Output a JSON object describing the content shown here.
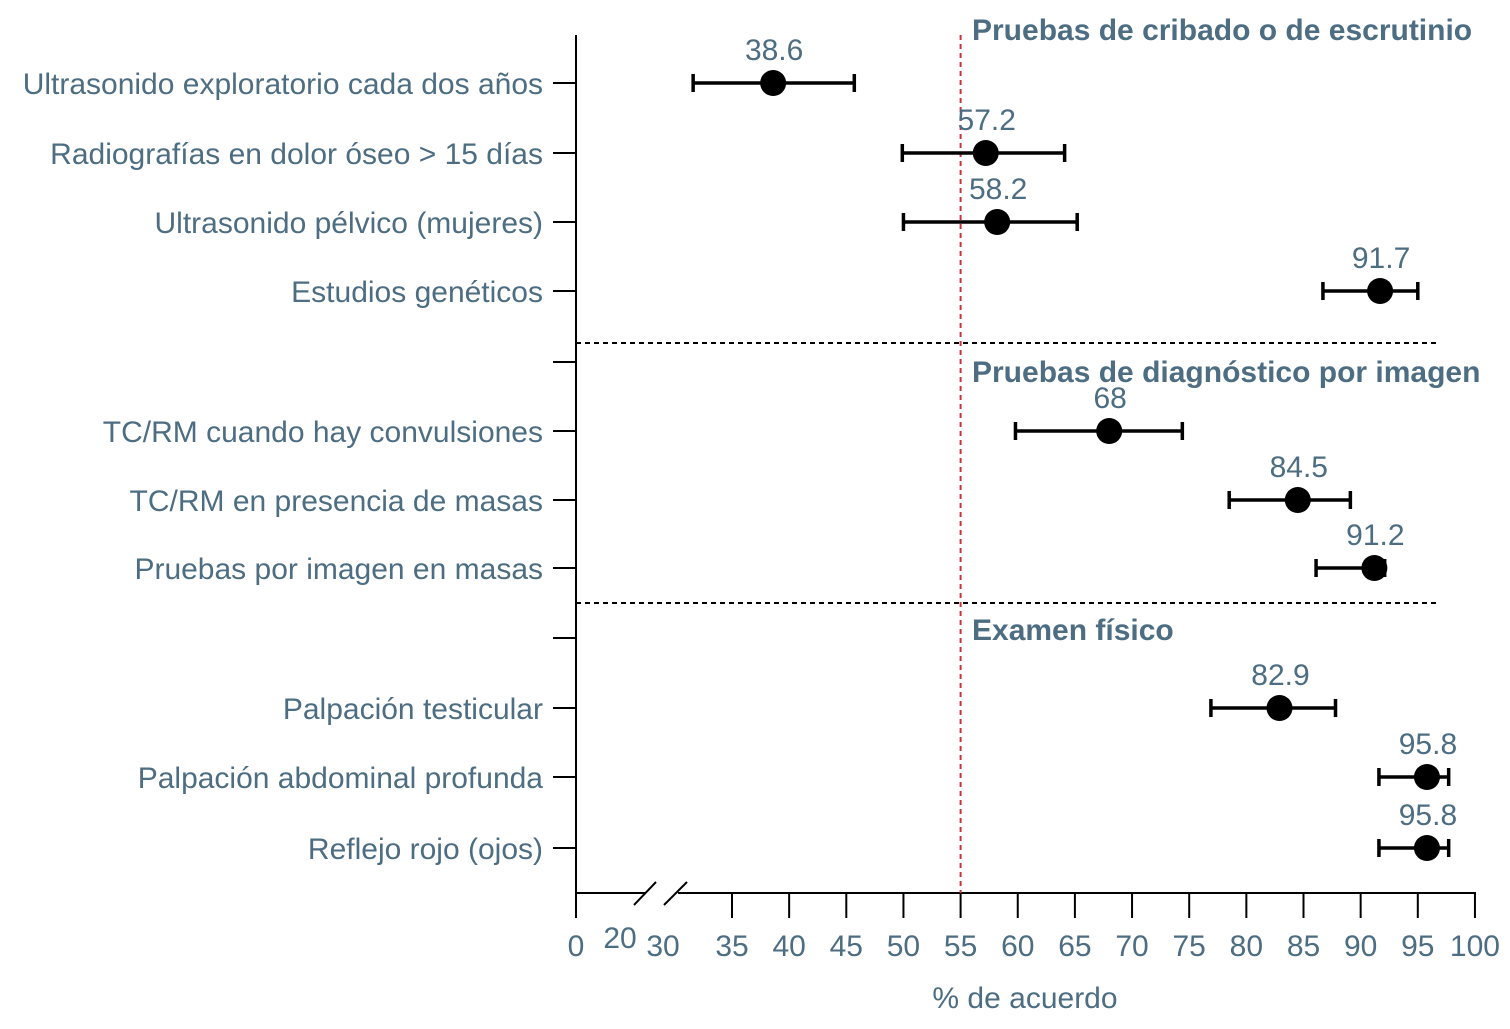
{
  "chart_data": {
    "type": "forest",
    "xlabel": "% de acuerdo",
    "xlim": [
      0,
      100
    ],
    "x_ticks": [
      "0",
      "20",
      "30",
      "35",
      "40",
      "45",
      "50",
      "55",
      "60",
      "65",
      "70",
      "75",
      "80",
      "85",
      "90",
      "95",
      "100"
    ],
    "axis_break": "between 0 and 30",
    "reference_line": 55,
    "colors": {
      "text": "#4d6d82",
      "marker": "#000000",
      "reference": "#d0303a"
    },
    "sections": [
      {
        "title": "Pruebas de cribado o de escrutinio",
        "rows": [
          {
            "label": "Ultrasonido exploratorio cada dos años",
            "value": 38.6,
            "value_label": "38.6",
            "low": 31.6,
            "high": 45.7
          },
          {
            "label": "Radiografías en dolor óseo > 15 días",
            "value": 57.2,
            "value_label": "57.2",
            "low": 49.9,
            "high": 64.1
          },
          {
            "label": "Ultrasonido pélvico (mujeres)",
            "value": 58.2,
            "value_label": "58.2",
            "low": 50.0,
            "high": 65.2
          },
          {
            "label": "Estudios genéticos",
            "value": 91.7,
            "value_label": "91.7",
            "low": 86.7,
            "high": 95.0
          }
        ]
      },
      {
        "title": "Pruebas de diagnóstico por imagen",
        "rows": [
          {
            "label": "TC/RM cuando hay convulsiones",
            "value": 68,
            "value_label": "68",
            "low": 59.8,
            "high": 74.4
          },
          {
            "label": "TC/RM en presencia de masas",
            "value": 84.5,
            "value_label": "84.5",
            "low": 78.5,
            "high": 89.1
          },
          {
            "label": "Pruebas por imagen en masas",
            "value": 91.2,
            "value_label": "91.2",
            "low": 86.1,
            "high": 92.1
          }
        ]
      },
      {
        "title": "Examen físico",
        "rows": [
          {
            "label": "Palpación testicular",
            "value": 82.9,
            "value_label": "82.9",
            "low": 76.9,
            "high": 87.8
          },
          {
            "label": "Palpación abdominal profunda",
            "value": 95.8,
            "value_label": "95.8",
            "low": 91.6,
            "high": 97.7
          },
          {
            "label": "Reflejo rojo (ojos)",
            "value": 95.8,
            "value_label": "95.8",
            "low": 91.6,
            "high": 97.7
          }
        ]
      }
    ]
  }
}
